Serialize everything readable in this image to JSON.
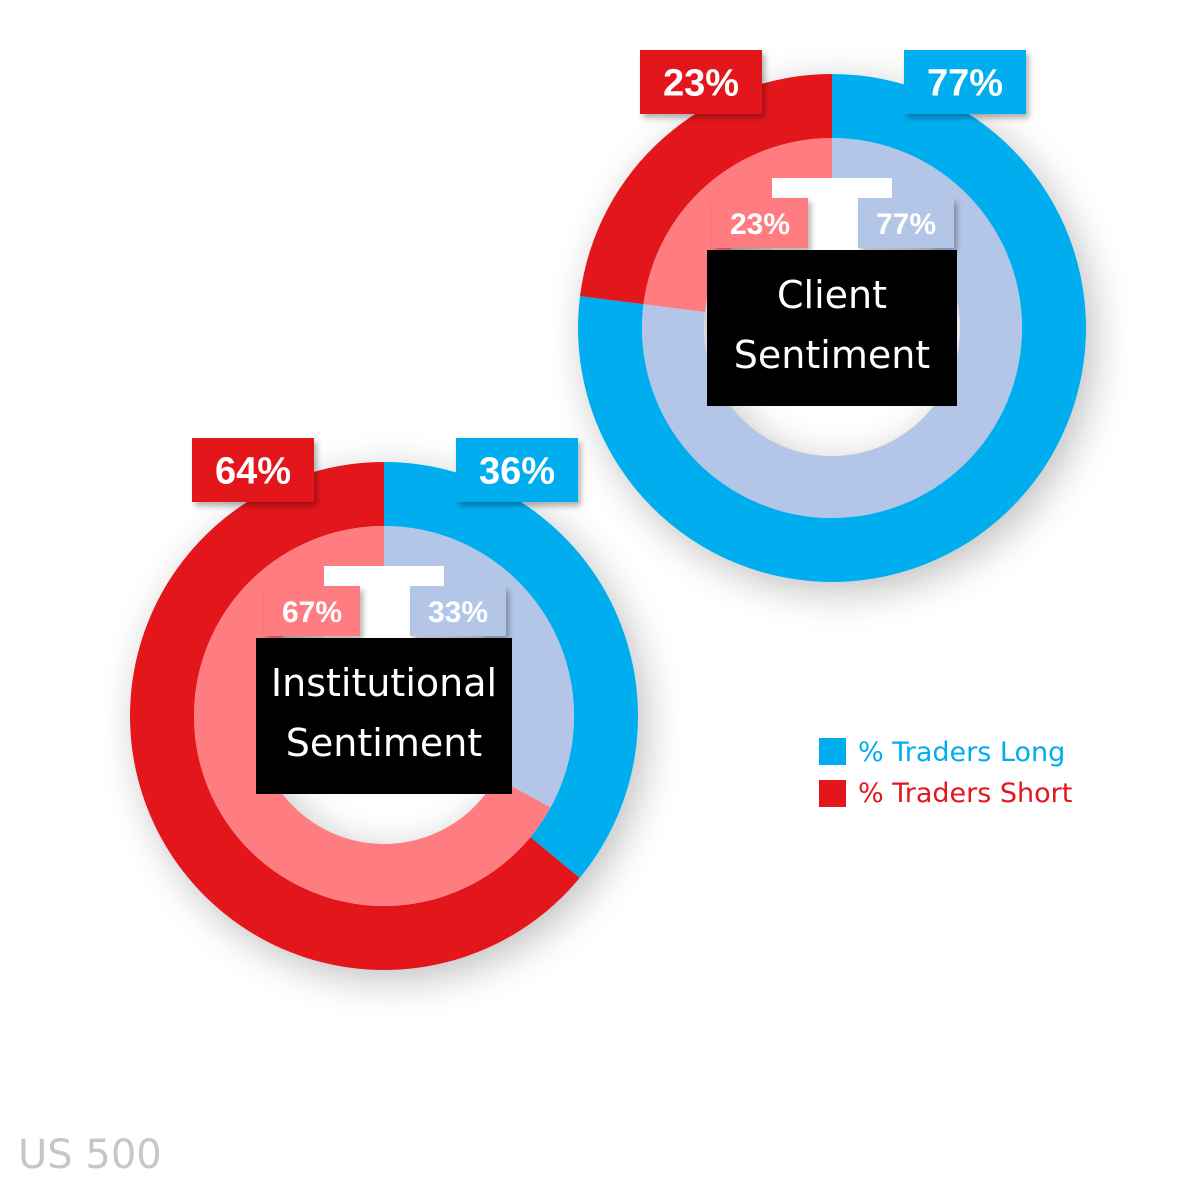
{
  "chart_data": [
    {
      "type": "pie",
      "title": "Client Sentiment",
      "title_lines": [
        "Client",
        "Sentiment"
      ],
      "series": [
        {
          "name": "% Traders Long",
          "outer": 77,
          "inner": 77
        },
        {
          "name": "% Traders Short",
          "outer": 23,
          "inner": 23
        }
      ]
    },
    {
      "type": "pie",
      "title": "Institutional Sentiment",
      "title_lines": [
        "Institutional",
        "Sentiment"
      ],
      "series": [
        {
          "name": "% Traders Long",
          "outer": 36,
          "inner": 33
        },
        {
          "name": "% Traders Short",
          "outer": 64,
          "inner": 67
        }
      ]
    }
  ],
  "legend": {
    "placement": "right",
    "items": [
      {
        "label": "% Traders Long",
        "color": "#00AEEF"
      },
      {
        "label": "% Traders Short",
        "color": "#E3151D"
      }
    ]
  },
  "colors": {
    "long_outer": "#00AEEF",
    "short_outer": "#E3151D",
    "long_inner": "#B4C6E7",
    "short_inner": "#FF7C80",
    "center_box": "#000000"
  },
  "footer": {
    "instrument": "US 500"
  }
}
